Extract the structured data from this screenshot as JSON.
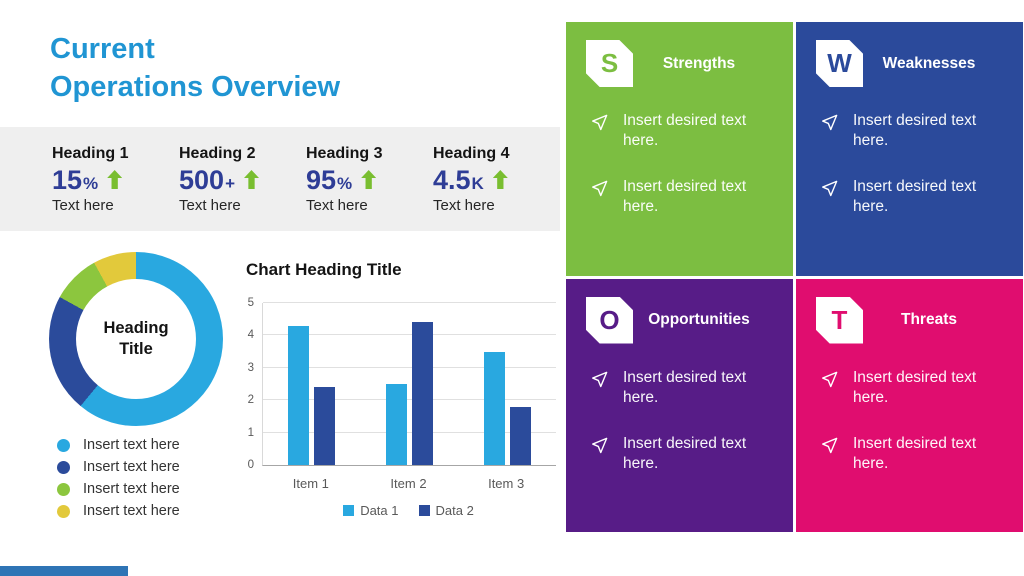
{
  "slide": {
    "title_line1": "Current",
    "title_line2": "Operations Overview",
    "accent_color": "#2E74B5"
  },
  "stats": {
    "trend_icon": "up-arrow",
    "trend_color": "#79BE30",
    "items": [
      {
        "heading": "Heading 1",
        "value": "15",
        "suffix": "%",
        "caption": "Text here"
      },
      {
        "heading": "Heading 2",
        "value": "500",
        "suffix": "+",
        "caption": "Text here"
      },
      {
        "heading": "Heading 3",
        "value": "95",
        "suffix": "%",
        "caption": "Text here"
      },
      {
        "heading": "Heading 4",
        "value": "4.5",
        "suffix": "K",
        "caption": "Text here"
      }
    ]
  },
  "donut": {
    "center_line1": "Heading",
    "center_line2": "Title",
    "segments": [
      {
        "label": "Insert text here",
        "color": "#29A8E0",
        "value": 61
      },
      {
        "label": "Insert text here",
        "color": "#2B4B9B",
        "value": 22
      },
      {
        "label": "Insert text here",
        "color": "#8CC63E",
        "value": 9
      },
      {
        "label": "Insert text here",
        "color": "#E2C93B",
        "value": 8
      }
    ]
  },
  "chart_data": {
    "type": "bar",
    "title": "Chart Heading Title",
    "categories": [
      "Item 1",
      "Item 2",
      "Item 3"
    ],
    "series": [
      {
        "name": "Data 1",
        "color": "#29A8E0",
        "values": [
          4.3,
          2.5,
          3.5
        ]
      },
      {
        "name": "Data 2",
        "color": "#2B4B9B",
        "values": [
          2.4,
          4.4,
          1.8
        ]
      }
    ],
    "xlabel": "",
    "ylabel": "",
    "ylim": [
      0,
      5
    ],
    "yticks": [
      0,
      1,
      2,
      3,
      4,
      5
    ],
    "grid": true,
    "legend_position": "bottom"
  },
  "swot": {
    "quadrants": [
      {
        "letter": "S",
        "title": "Strengths",
        "color": "#7CBE41",
        "bullets": [
          "Insert desired text here.",
          "Insert desired text here."
        ]
      },
      {
        "letter": "W",
        "title": "Weaknesses",
        "color": "#2B4A9B",
        "bullets": [
          "Insert desired text here.",
          "Insert desired text here."
        ]
      },
      {
        "letter": "O",
        "title": "Opportunities",
        "color": "#571C87",
        "bullets": [
          "Insert desired text here.",
          "Insert desired text here."
        ]
      },
      {
        "letter": "T",
        "title": "Threats",
        "color": "#E00D6F",
        "bullets": [
          "Insert desired text here.",
          "Insert desired text here."
        ]
      }
    ]
  }
}
